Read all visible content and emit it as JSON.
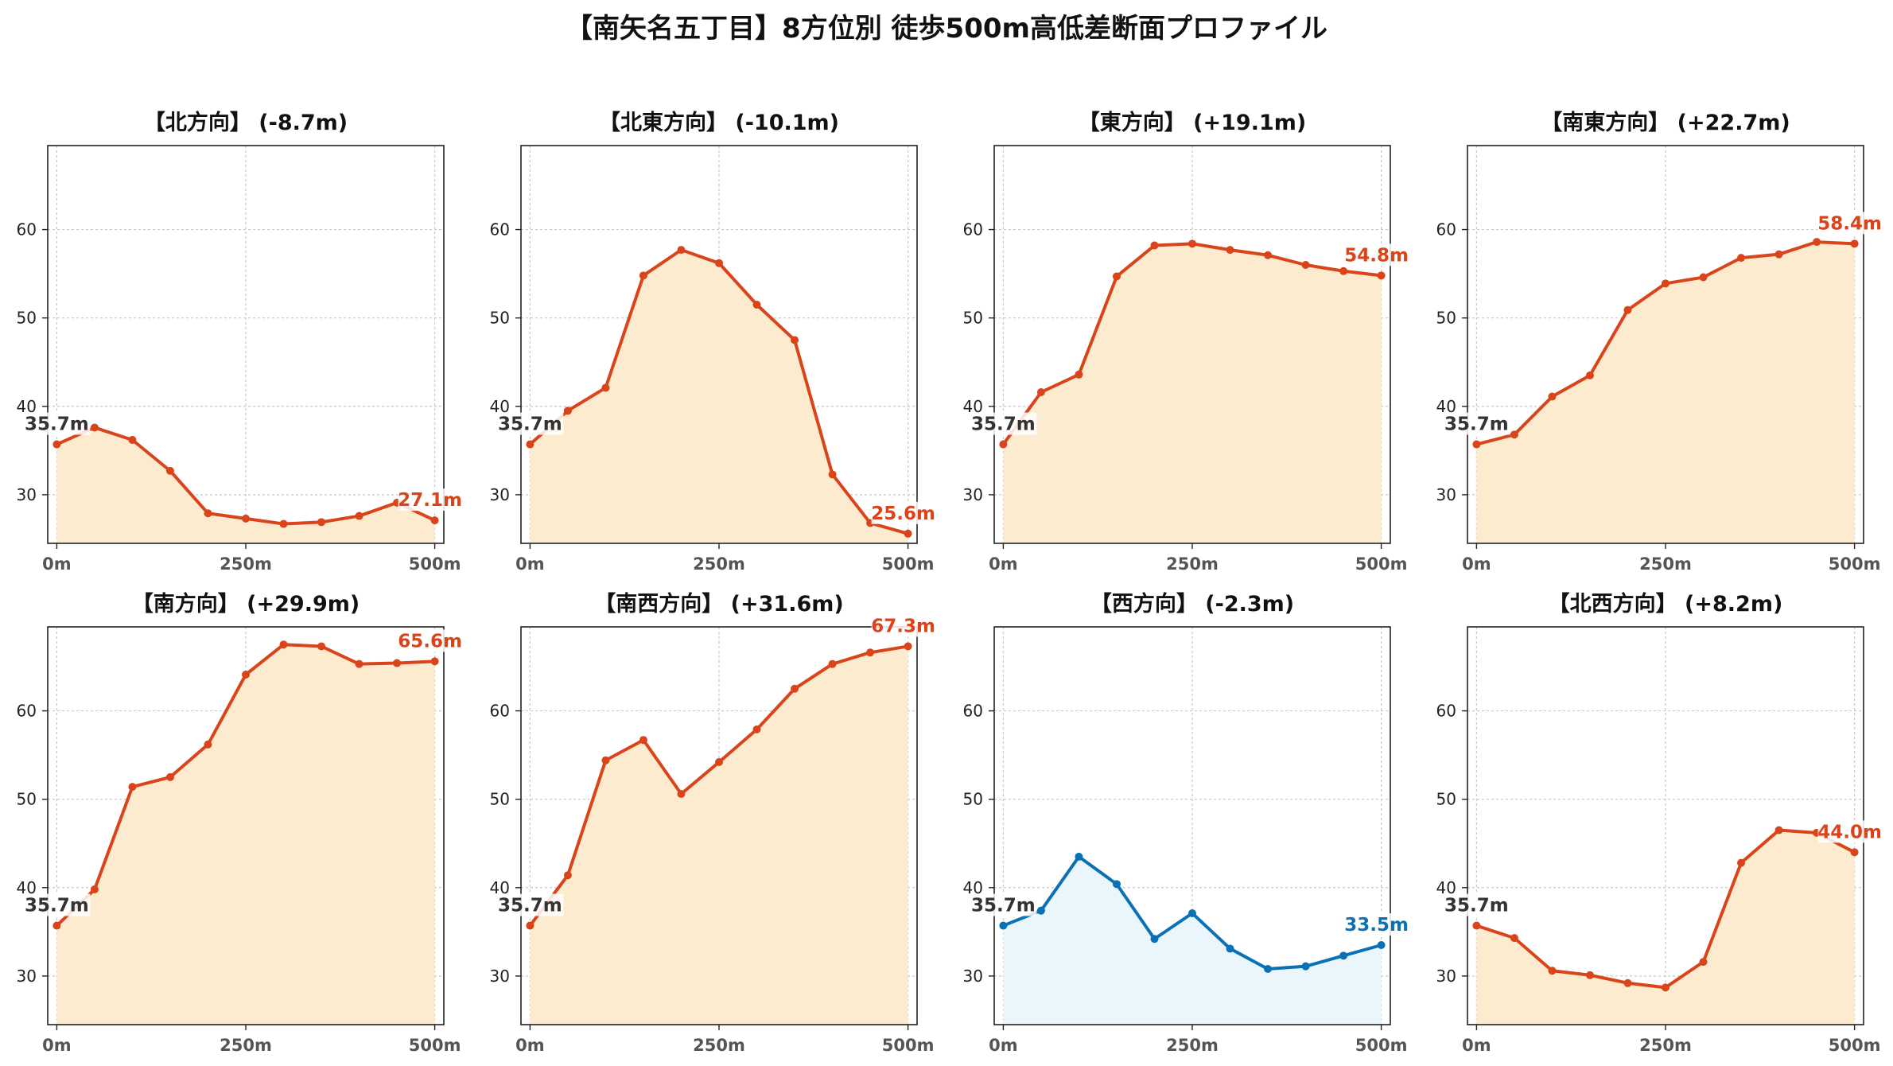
{
  "title": "【南矢名五丁目】8方位別 徒歩500m高低差断面プロファイル",
  "colors": {
    "up_line": "#d9441a",
    "up_fill": "#fdebd0",
    "down_line": "#0a72b4",
    "down_fill": "#eaf6fc",
    "start_label": "#333333",
    "grid": "#c8c8c8",
    "tick": "#555555"
  },
  "chart_data": [
    {
      "type": "area",
      "title": "【北方向】 (-8.7m)",
      "x": [
        0,
        50,
        100,
        150,
        200,
        250,
        300,
        350,
        400,
        450,
        500
      ],
      "series": [
        {
          "values": [
            35.7,
            37.6,
            36.2,
            32.7,
            27.9,
            27.3,
            26.7,
            26.9,
            27.6,
            29.1,
            27.1
          ]
        }
      ],
      "start_label": "35.7m",
      "end_label": "27.1m",
      "color_scheme": "up",
      "xticks": [
        "0m",
        "250m",
        "500m"
      ],
      "yticks": [
        30,
        40,
        50,
        60
      ],
      "ylim": [
        24.5,
        69.5
      ],
      "xlim": [
        -12,
        512
      ],
      "grid": true
    },
    {
      "type": "area",
      "title": "【北東方向】 (-10.1m)",
      "x": [
        0,
        50,
        100,
        150,
        200,
        250,
        300,
        350,
        400,
        450,
        500
      ],
      "series": [
        {
          "values": [
            35.7,
            39.5,
            42.1,
            54.8,
            57.7,
            56.2,
            51.5,
            47.5,
            32.3,
            26.8,
            25.6
          ]
        }
      ],
      "start_label": "35.7m",
      "end_label": "25.6m",
      "color_scheme": "up",
      "xticks": [
        "0m",
        "250m",
        "500m"
      ],
      "yticks": [
        30,
        40,
        50,
        60
      ],
      "ylim": [
        24.5,
        69.5
      ],
      "xlim": [
        -12,
        512
      ],
      "grid": true
    },
    {
      "type": "area",
      "title": "【東方向】 (+19.1m)",
      "x": [
        0,
        50,
        100,
        150,
        200,
        250,
        300,
        350,
        400,
        450,
        500
      ],
      "series": [
        {
          "values": [
            35.7,
            41.6,
            43.6,
            54.7,
            58.2,
            58.4,
            57.7,
            57.1,
            56.0,
            55.3,
            54.8
          ]
        }
      ],
      "start_label": "35.7m",
      "end_label": "54.8m",
      "color_scheme": "up",
      "xticks": [
        "0m",
        "250m",
        "500m"
      ],
      "yticks": [
        30,
        40,
        50,
        60
      ],
      "ylim": [
        24.5,
        69.5
      ],
      "xlim": [
        -12,
        512
      ],
      "grid": true
    },
    {
      "type": "area",
      "title": "【南東方向】 (+22.7m)",
      "x": [
        0,
        50,
        100,
        150,
        200,
        250,
        300,
        350,
        400,
        450,
        500
      ],
      "series": [
        {
          "values": [
            35.7,
            36.8,
            41.1,
            43.5,
            50.9,
            53.9,
            54.6,
            56.8,
            57.2,
            58.6,
            58.4
          ]
        }
      ],
      "start_label": "35.7m",
      "end_label": "58.4m",
      "color_scheme": "up",
      "xticks": [
        "0m",
        "250m",
        "500m"
      ],
      "yticks": [
        30,
        40,
        50,
        60
      ],
      "ylim": [
        24.5,
        69.5
      ],
      "xlim": [
        -12,
        512
      ],
      "grid": true
    },
    {
      "type": "area",
      "title": "【南方向】 (+29.9m)",
      "x": [
        0,
        50,
        100,
        150,
        200,
        250,
        300,
        350,
        400,
        450,
        500
      ],
      "series": [
        {
          "values": [
            35.7,
            39.8,
            51.4,
            52.5,
            56.2,
            64.1,
            67.5,
            67.3,
            65.3,
            65.4,
            65.6
          ]
        }
      ],
      "start_label": "35.7m",
      "end_label": "65.6m",
      "color_scheme": "up",
      "xticks": [
        "0m",
        "250m",
        "500m"
      ],
      "yticks": [
        30,
        40,
        50,
        60
      ],
      "ylim": [
        24.5,
        69.5
      ],
      "xlim": [
        -12,
        512
      ],
      "grid": true
    },
    {
      "type": "area",
      "title": "【南西方向】 (+31.6m)",
      "x": [
        0,
        50,
        100,
        150,
        200,
        250,
        300,
        350,
        400,
        450,
        500
      ],
      "series": [
        {
          "values": [
            35.7,
            41.4,
            54.4,
            56.7,
            50.6,
            54.2,
            57.9,
            62.5,
            65.3,
            66.6,
            67.3
          ]
        }
      ],
      "start_label": "35.7m",
      "end_label": "67.3m",
      "color_scheme": "up",
      "xticks": [
        "0m",
        "250m",
        "500m"
      ],
      "yticks": [
        30,
        40,
        50,
        60
      ],
      "ylim": [
        24.5,
        69.5
      ],
      "xlim": [
        -12,
        512
      ],
      "grid": true
    },
    {
      "type": "area",
      "title": "【西方向】 (-2.3m)",
      "x": [
        0,
        50,
        100,
        150,
        200,
        250,
        300,
        350,
        400,
        450,
        500
      ],
      "series": [
        {
          "values": [
            35.7,
            37.4,
            43.5,
            40.4,
            34.2,
            37.1,
            33.1,
            30.8,
            31.1,
            32.3,
            33.5
          ]
        }
      ],
      "start_label": "35.7m",
      "end_label": "33.5m",
      "color_scheme": "down",
      "xticks": [
        "0m",
        "250m",
        "500m"
      ],
      "yticks": [
        30,
        40,
        50,
        60
      ],
      "ylim": [
        24.5,
        69.5
      ],
      "xlim": [
        -12,
        512
      ],
      "grid": true
    },
    {
      "type": "area",
      "title": "【北西方向】 (+8.2m)",
      "x": [
        0,
        50,
        100,
        150,
        200,
        250,
        300,
        350,
        400,
        450,
        500
      ],
      "series": [
        {
          "values": [
            35.7,
            34.3,
            30.6,
            30.1,
            29.2,
            28.7,
            31.6,
            42.8,
            46.5,
            46.2,
            44.0
          ]
        }
      ],
      "start_label": "35.7m",
      "end_label": "44.0m",
      "color_scheme": "up",
      "xticks": [
        "0m",
        "250m",
        "500m"
      ],
      "yticks": [
        30,
        40,
        50,
        60
      ],
      "ylim": [
        24.5,
        69.5
      ],
      "xlim": [
        -12,
        512
      ],
      "grid": true
    }
  ]
}
